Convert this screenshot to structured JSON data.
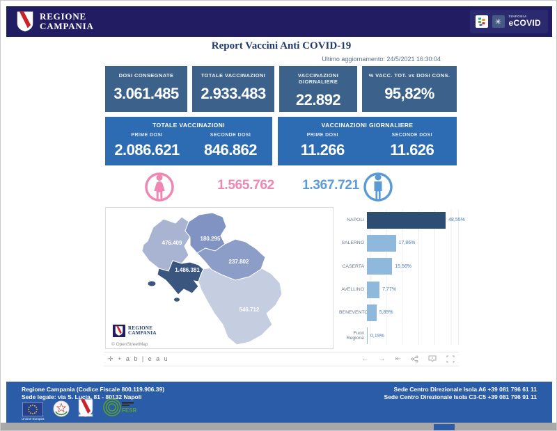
{
  "header": {
    "brand_line1": "REGIONE",
    "brand_line2": "CAMPANIA",
    "badge_small": "SINFONIA",
    "badge_big": "eCOVID"
  },
  "report": {
    "title": "Report Vaccini Anti COVID-19",
    "last_update": "Ultimo aggiornamento: 24/5/2021  16:30:04"
  },
  "kpis": [
    {
      "label": "DOSI CONSEGNATE",
      "value": "3.061.485"
    },
    {
      "label": "TOTALE VACCINAZIONI",
      "value": "2.933.483"
    },
    {
      "label": "VACCINAZIONI GIORNALIERE",
      "value": "22.892"
    },
    {
      "label": "% VACC. TOT. vs DOSI CONS.",
      "value": "95,82%"
    }
  ],
  "kpi_groups": [
    {
      "title": "TOTALE VACCINAZIONI",
      "cols": [
        {
          "label": "PRIME DOSI",
          "value": "2.086.621"
        },
        {
          "label": "SECONDE DOSI",
          "value": "846.862"
        }
      ]
    },
    {
      "title": "VACCINAZIONI GIORNALIERE",
      "cols": [
        {
          "label": "PRIME DOSI",
          "value": "11.266"
        },
        {
          "label": "SECONDE DOSI",
          "value": "11.626"
        }
      ]
    }
  ],
  "gender": {
    "female_value": "1.565.762",
    "male_value": "1.367.721",
    "female_color": "#ee87b4",
    "male_color": "#5b9bd5"
  },
  "map_panel": {
    "attribution": "© OpenStreetMap",
    "watermark_line1": "REGIONE",
    "watermark_line2": "CAMPANIA"
  },
  "chart_data": [
    {
      "type": "bar",
      "orientation": "horizontal",
      "categories": [
        "NAPOLI",
        "SALERNO",
        "CASERTA",
        "AVELLINO",
        "BENEVENTO",
        "Fuori Regione"
      ],
      "values": [
        48.55,
        17.86,
        15.56,
        7.77,
        5.89,
        0.19
      ],
      "value_labels": [
        "48,55%",
        "17,86%",
        "15,56%",
        "7,77%",
        "5,89%",
        "0,19%"
      ],
      "bar_colors": [
        "#2e4d73",
        "#8fb9dc",
        "#8fb9dc",
        "#8fb9dc",
        "#8fb9dc",
        "#8fb9dc"
      ],
      "xlim": [
        0,
        55
      ],
      "grid": true,
      "value_label_color": "#4a7db8"
    },
    {
      "type": "map",
      "region": "Campania",
      "provinces": [
        {
          "name": "Caserta",
          "value": "476.409",
          "color": "#a9b4d3"
        },
        {
          "name": "Benevento",
          "value": "180.295",
          "color": "#8093c2"
        },
        {
          "name": "Avellino",
          "value": "237.802",
          "color": "#8c9ec8"
        },
        {
          "name": "Napoli",
          "value": "1.486.381",
          "color": "#3a567e"
        },
        {
          "name": "Salerno",
          "value": "546.712",
          "color": "#c5cde0"
        }
      ]
    }
  ],
  "tableau": {
    "logo_glyph": "✛",
    "logo_text": "+ a b | e a u",
    "toolbar": {
      "undo": "←",
      "redo": "→",
      "reset": "⇤"
    }
  },
  "footer": {
    "left_line1": "Regione Campania (Codice Fiscale 800.119.906.39)",
    "left_line2": "Sede legale: via S. Lucia, 81 - 80132 Napoli",
    "right_line1": "Sede Centro Direzionale Isola A6 +39 081 796 61 11",
    "right_line2": "Sede Centro Direzionale Isola C3-C5 +39 081 796 91 11",
    "eu_caption": "Unione Europea",
    "fesr_label": "FESR"
  },
  "colors": {
    "header_bg": "#221c63",
    "kpi_box": "#3c618a",
    "kpi_group": "#2d6cb2",
    "footer_bg": "#2a5ca8",
    "title_text": "#1f3a6d",
    "shield_red": "#cc2229"
  }
}
